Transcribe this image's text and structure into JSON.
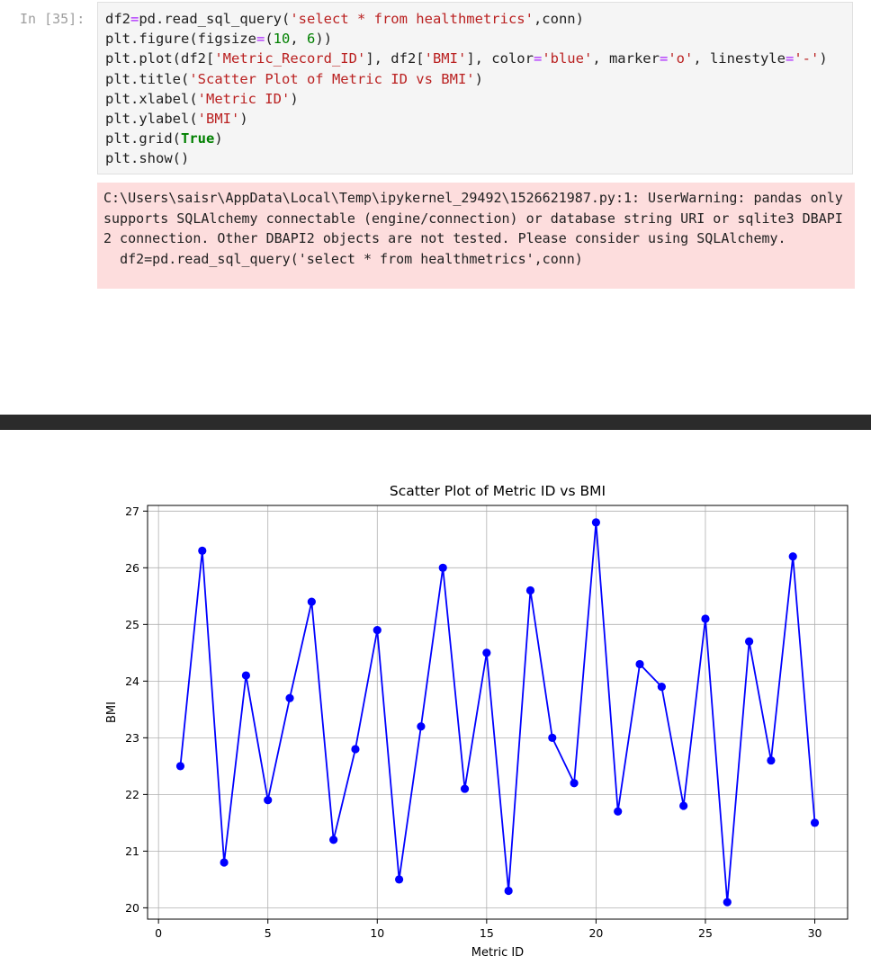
{
  "cell": {
    "prompt": "In [35]:",
    "code_lines": [
      "df2=pd.read_sql_query('select * from healthmetrics',conn)",
      "plt.figure(figsize=(10, 6))",
      "plt.plot(df2['Metric_Record_ID'], df2['BMI'], color='blue', marker='o', linestyle='-')",
      "plt.title('Scatter Plot of Metric ID vs BMI')",
      "plt.xlabel('Metric ID')",
      "plt.ylabel('BMI')",
      "plt.grid(True)",
      "plt.show()"
    ],
    "stderr": "C:\\Users\\saisr\\AppData\\Local\\Temp\\ipykernel_29492\\1526621987.py:1: UserWarning: pandas only supports SQLAlchemy connectable (engine/connection) or database string URI or sqlite3 DBAPI2 connection. Other DBAPI2 objects are not tested. Please consider using SQLAlchemy.\n  df2=pd.read_sql_query('select * from healthmetrics',conn)"
  },
  "colors": {
    "line": "#0000ff",
    "grid": "#b0b0b0",
    "stderr_bg": "#fddddd",
    "divider": "#2b2b2b"
  },
  "chart_data": {
    "type": "line",
    "title": "Scatter Plot of Metric ID vs BMI",
    "xlabel": "Metric ID",
    "ylabel": "BMI",
    "xlim": [
      -0.5,
      31.5
    ],
    "ylim": [
      19.8,
      27.1
    ],
    "xticks": [
      0,
      5,
      10,
      15,
      20,
      25,
      30
    ],
    "yticks": [
      20,
      21,
      22,
      23,
      24,
      25,
      26,
      27
    ],
    "grid": true,
    "marker": "o",
    "x": [
      1,
      2,
      3,
      4,
      5,
      6,
      7,
      8,
      9,
      10,
      11,
      12,
      13,
      14,
      15,
      16,
      17,
      18,
      19,
      20,
      21,
      22,
      23,
      24,
      25,
      26,
      27,
      28,
      29,
      30
    ],
    "y": [
      22.5,
      26.3,
      20.8,
      24.1,
      21.9,
      23.7,
      25.4,
      21.2,
      22.8,
      24.9,
      20.5,
      23.2,
      26.0,
      22.1,
      24.5,
      20.3,
      25.6,
      23.0,
      22.2,
      26.8,
      21.7,
      24.3,
      23.9,
      21.8,
      25.1,
      20.1,
      24.7,
      22.6,
      26.2,
      21.5
    ]
  }
}
